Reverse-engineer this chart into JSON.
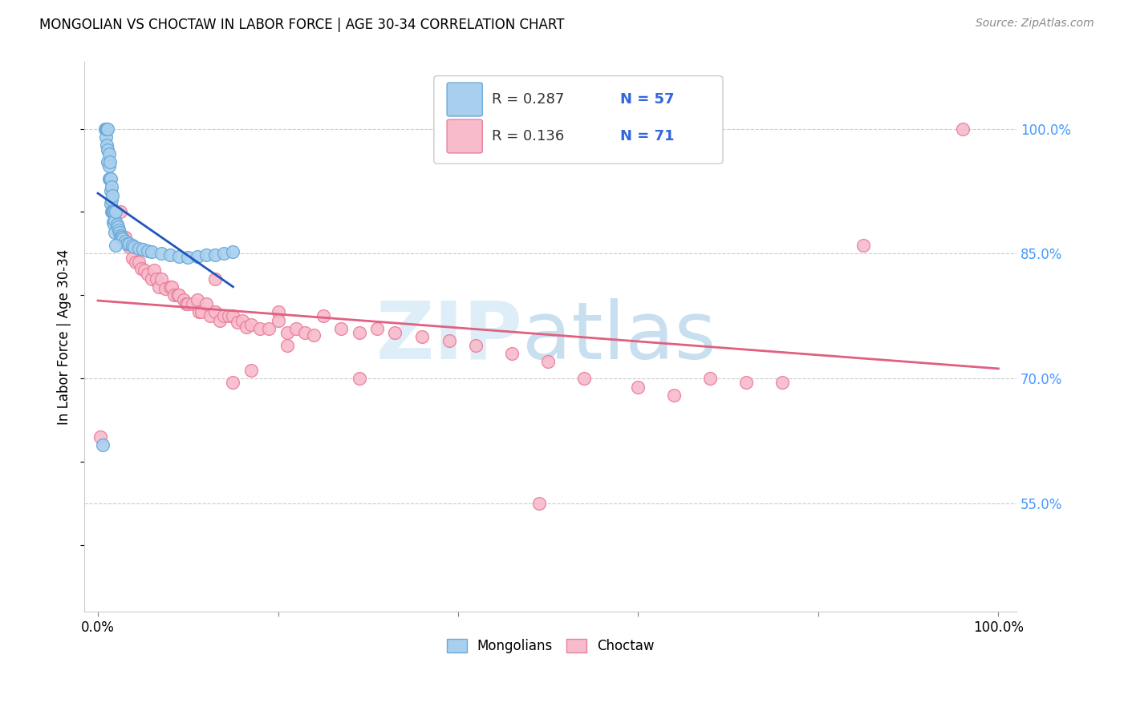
{
  "title": "MONGOLIAN VS CHOCTAW IN LABOR FORCE | AGE 30-34 CORRELATION CHART",
  "source": "Source: ZipAtlas.com",
  "ylabel": "In Labor Force | Age 30-34",
  "xlim": [
    -0.015,
    1.02
  ],
  "ylim": [
    0.42,
    1.08
  ],
  "x_ticks": [
    0.0,
    0.2,
    0.4,
    0.6,
    0.8,
    1.0
  ],
  "x_tick_labels": [
    "0.0%",
    "",
    "",
    "",
    "",
    "100.0%"
  ],
  "y_tick_labels_right": [
    "55.0%",
    "70.0%",
    "85.0%",
    "100.0%"
  ],
  "y_tick_values_right": [
    0.55,
    0.7,
    0.85,
    1.0
  ],
  "mongolian_R": "0.287",
  "mongolian_N": "57",
  "choctaw_R": "0.136",
  "choctaw_N": "71",
  "mongolian_color": "#A8D0EE",
  "mongolian_edge_color": "#6AAAD8",
  "choctaw_color": "#F8BBCC",
  "choctaw_edge_color": "#E8809A",
  "mongolian_line_color": "#2255BB",
  "choctaw_line_color": "#E06080",
  "grid_color": "#CCCCCC",
  "mongolian_x": [
    0.005,
    0.008,
    0.009,
    0.009,
    0.01,
    0.01,
    0.01,
    0.011,
    0.011,
    0.011,
    0.012,
    0.012,
    0.012,
    0.013,
    0.013,
    0.014,
    0.014,
    0.014,
    0.015,
    0.015,
    0.015,
    0.016,
    0.016,
    0.017,
    0.017,
    0.018,
    0.018,
    0.019,
    0.019,
    0.02,
    0.021,
    0.022,
    0.023,
    0.024,
    0.025,
    0.026,
    0.027,
    0.028,
    0.03,
    0.032,
    0.035,
    0.038,
    0.04,
    0.045,
    0.05,
    0.055,
    0.06,
    0.07,
    0.08,
    0.09,
    0.1,
    0.11,
    0.12,
    0.13,
    0.14,
    0.15,
    0.02
  ],
  "mongolian_y": [
    0.62,
    1.0,
    1.0,
    0.99,
    1.0,
    1.0,
    0.98,
    1.0,
    0.975,
    0.96,
    0.97,
    0.955,
    0.94,
    0.96,
    0.94,
    0.94,
    0.925,
    0.91,
    0.93,
    0.915,
    0.9,
    0.92,
    0.9,
    0.9,
    0.888,
    0.9,
    0.885,
    0.89,
    0.875,
    0.9,
    0.885,
    0.882,
    0.878,
    0.875,
    0.872,
    0.87,
    0.87,
    0.868,
    0.865,
    0.862,
    0.862,
    0.86,
    0.858,
    0.856,
    0.855,
    0.853,
    0.852,
    0.85,
    0.848,
    0.847,
    0.846,
    0.847,
    0.848,
    0.848,
    0.85,
    0.852,
    0.86
  ],
  "choctaw_x": [
    0.003,
    0.025,
    0.03,
    0.035,
    0.038,
    0.042,
    0.045,
    0.048,
    0.052,
    0.055,
    0.06,
    0.062,
    0.065,
    0.068,
    0.07,
    0.075,
    0.08,
    0.082,
    0.085,
    0.088,
    0.09,
    0.095,
    0.098,
    0.1,
    0.105,
    0.11,
    0.112,
    0.115,
    0.12,
    0.125,
    0.13,
    0.135,
    0.14,
    0.145,
    0.15,
    0.155,
    0.16,
    0.165,
    0.17,
    0.18,
    0.19,
    0.2,
    0.21,
    0.22,
    0.23,
    0.24,
    0.25,
    0.27,
    0.29,
    0.31,
    0.33,
    0.36,
    0.39,
    0.42,
    0.46,
    0.5,
    0.54,
    0.6,
    0.64,
    0.68,
    0.72,
    0.76,
    0.85,
    0.96,
    0.29,
    0.49,
    0.13,
    0.2,
    0.17,
    0.15,
    0.21
  ],
  "choctaw_y": [
    0.63,
    0.9,
    0.87,
    0.858,
    0.845,
    0.84,
    0.84,
    0.832,
    0.83,
    0.825,
    0.82,
    0.83,
    0.82,
    0.81,
    0.82,
    0.808,
    0.81,
    0.81,
    0.8,
    0.8,
    0.8,
    0.795,
    0.79,
    0.79,
    0.79,
    0.795,
    0.78,
    0.78,
    0.79,
    0.775,
    0.78,
    0.77,
    0.775,
    0.775,
    0.775,
    0.768,
    0.77,
    0.762,
    0.765,
    0.76,
    0.76,
    0.78,
    0.755,
    0.76,
    0.755,
    0.752,
    0.775,
    0.76,
    0.755,
    0.76,
    0.755,
    0.75,
    0.745,
    0.74,
    0.73,
    0.72,
    0.7,
    0.69,
    0.68,
    0.7,
    0.695,
    0.695,
    0.86,
    1.0,
    0.7,
    0.55,
    0.82,
    0.77,
    0.71,
    0.695,
    0.74
  ]
}
